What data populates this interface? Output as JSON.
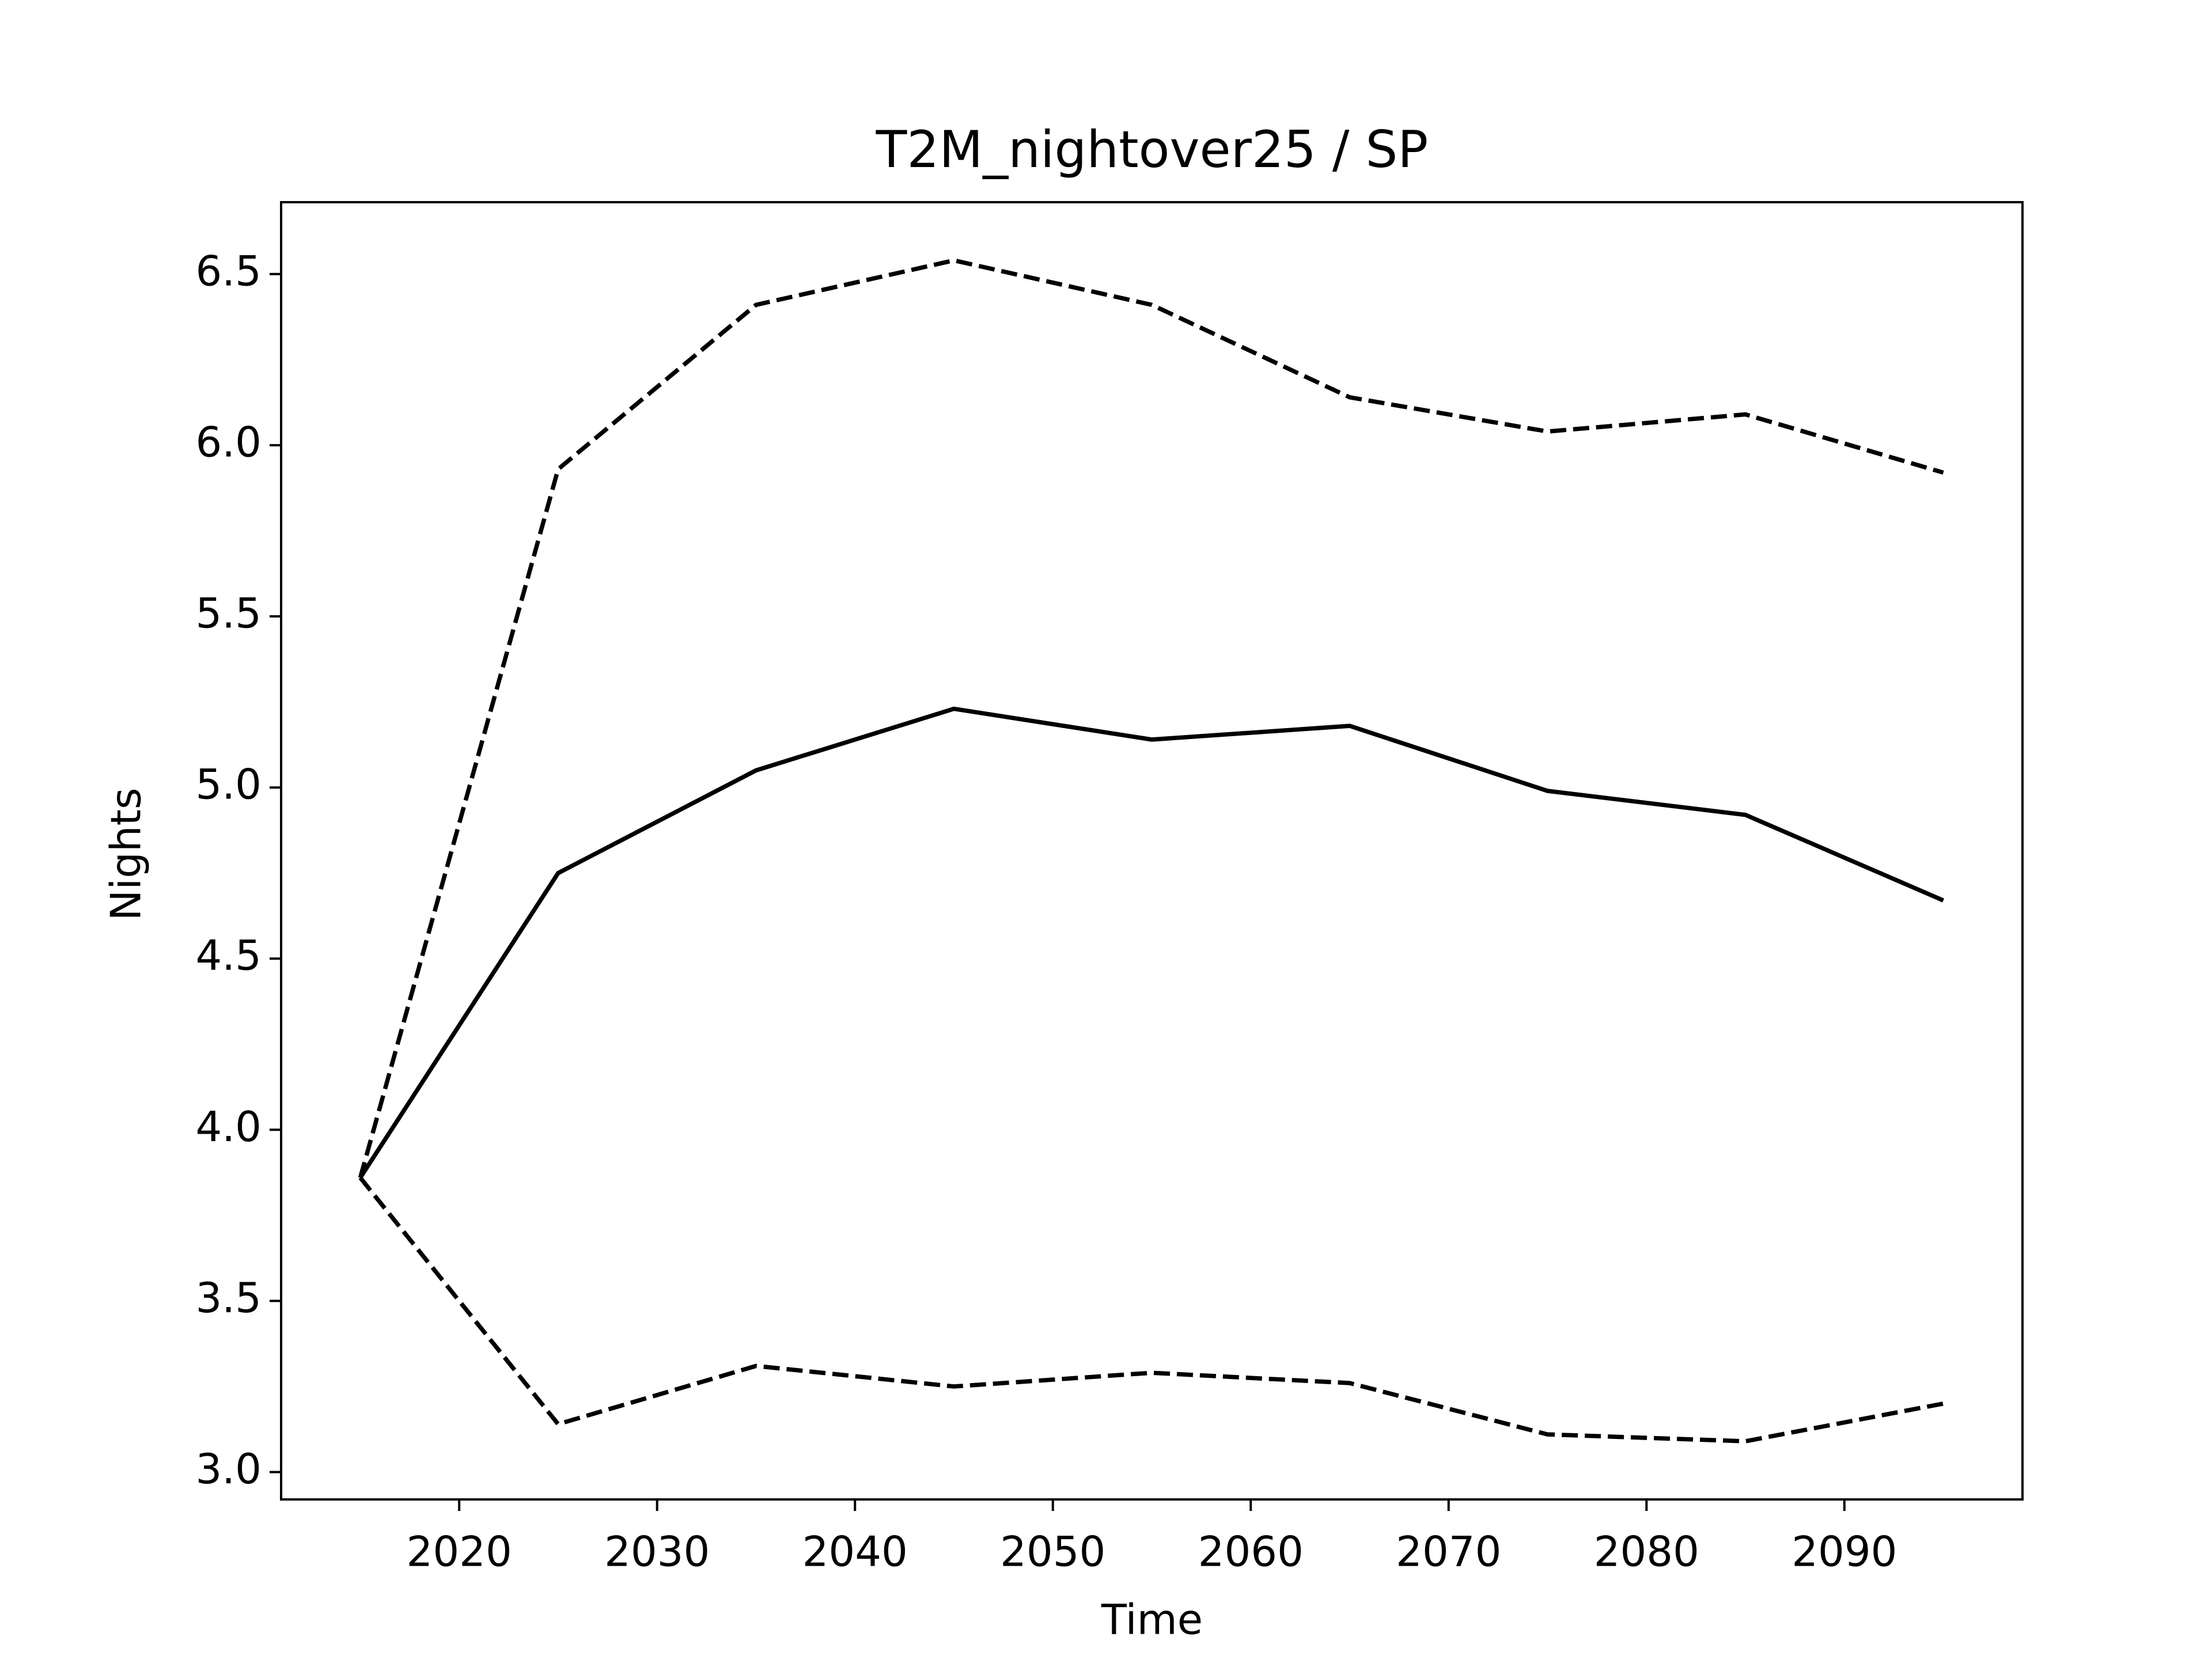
{
  "chart_data": {
    "type": "line",
    "title": "T2M_nightover25 / SP",
    "xlabel": "Time",
    "ylabel": "Nights",
    "x": [
      2015,
      2025,
      2035,
      2045,
      2055,
      2065,
      2075,
      2085,
      2095
    ],
    "series": [
      {
        "color": "#000000",
        "linestyle": "solid",
        "values": [
          3.86,
          4.75,
          5.05,
          5.23,
          5.14,
          5.18,
          4.99,
          4.92,
          4.67
        ]
      },
      {
        "color": "#000000",
        "linestyle": "dashed",
        "values": [
          3.86,
          5.93,
          6.41,
          6.54,
          6.41,
          6.14,
          6.04,
          6.09,
          5.92
        ]
      },
      {
        "color": "#000000",
        "linestyle": "dashed",
        "values": [
          3.86,
          3.14,
          3.31,
          3.25,
          3.29,
          3.26,
          3.11,
          3.09,
          3.2
        ]
      }
    ],
    "xlim": [
      2011,
      2099
    ],
    "xticks": [
      2020,
      2030,
      2040,
      2050,
      2060,
      2070,
      2080,
      2090
    ],
    "ylim": [
      2.92,
      6.71
    ],
    "yticks": [
      {
        "value": 3,
        "label": "3.0"
      },
      3.5,
      {
        "value": 4,
        "label": "4.0"
      },
      4.5,
      {
        "value": 5,
        "label": "5.0"
      },
      5.5,
      {
        "value": 6,
        "label": "6.0"
      },
      6.5
    ],
    "grid": false
  }
}
